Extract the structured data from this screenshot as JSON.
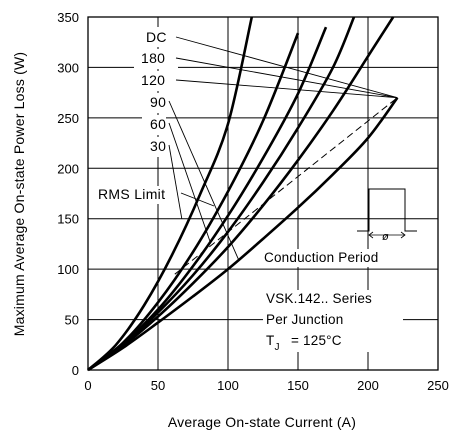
{
  "chart_data": {
    "type": "line",
    "xlabel": "Average On-state Current (A)",
    "ylabel": "Maximum Average On-state Power Loss (W)",
    "xlim": [
      0,
      250
    ],
    "ylim": [
      0,
      350
    ],
    "x_ticks": [
      0,
      50,
      100,
      150,
      200,
      250
    ],
    "y_ticks": [
      0,
      50,
      100,
      150,
      200,
      250,
      300,
      350
    ],
    "grid": true,
    "series": [
      {
        "name": "DC",
        "x": [
          0,
          25,
          50,
          75,
          100,
          125,
          150,
          175,
          200,
          221
        ],
        "y": [
          0,
          22,
          47,
          73,
          100,
          130,
          161,
          194,
          230,
          270
        ]
      },
      {
        "name": "180",
        "x": [
          0,
          25,
          50,
          75,
          100,
          125,
          150,
          175,
          200,
          218
        ],
        "y": [
          0,
          24,
          53,
          86,
          122,
          163,
          208,
          257,
          311,
          350
        ]
      },
      {
        "name": "120",
        "x": [
          0,
          25,
          50,
          75,
          100,
          125,
          150,
          175,
          190
        ],
        "y": [
          0,
          25,
          57,
          94,
          137,
          186,
          240,
          300,
          350
        ]
      },
      {
        "name": "90",
        "x": [
          0,
          25,
          50,
          75,
          100,
          125,
          150,
          170
        ],
        "y": [
          0,
          26,
          60,
          103,
          153,
          210,
          274,
          340
        ]
      },
      {
        "name": "60",
        "x": [
          0,
          25,
          50,
          75,
          100,
          125,
          150
        ],
        "y": [
          0,
          27,
          67,
          117,
          177,
          247,
          334
        ]
      },
      {
        "name": "30",
        "x": [
          0,
          20,
          40,
          60,
          80,
          100,
          117
        ],
        "y": [
          0,
          25,
          64,
          114,
          174,
          244,
          350
        ]
      }
    ],
    "rms_limit": {
      "name": "RMS Limit",
      "x": [
        62,
        221
      ],
      "y": [
        95,
        270
      ]
    },
    "annotations": {
      "rms_label": "RMS Limit",
      "conduction_period": "Conduction Period",
      "conduction_symbol": "ø",
      "device": "VSK.142.. Series",
      "junction": "Per Junction",
      "tj_prefix": "T",
      "tj_sub": "J",
      "tj_value": "= 125°C"
    }
  }
}
